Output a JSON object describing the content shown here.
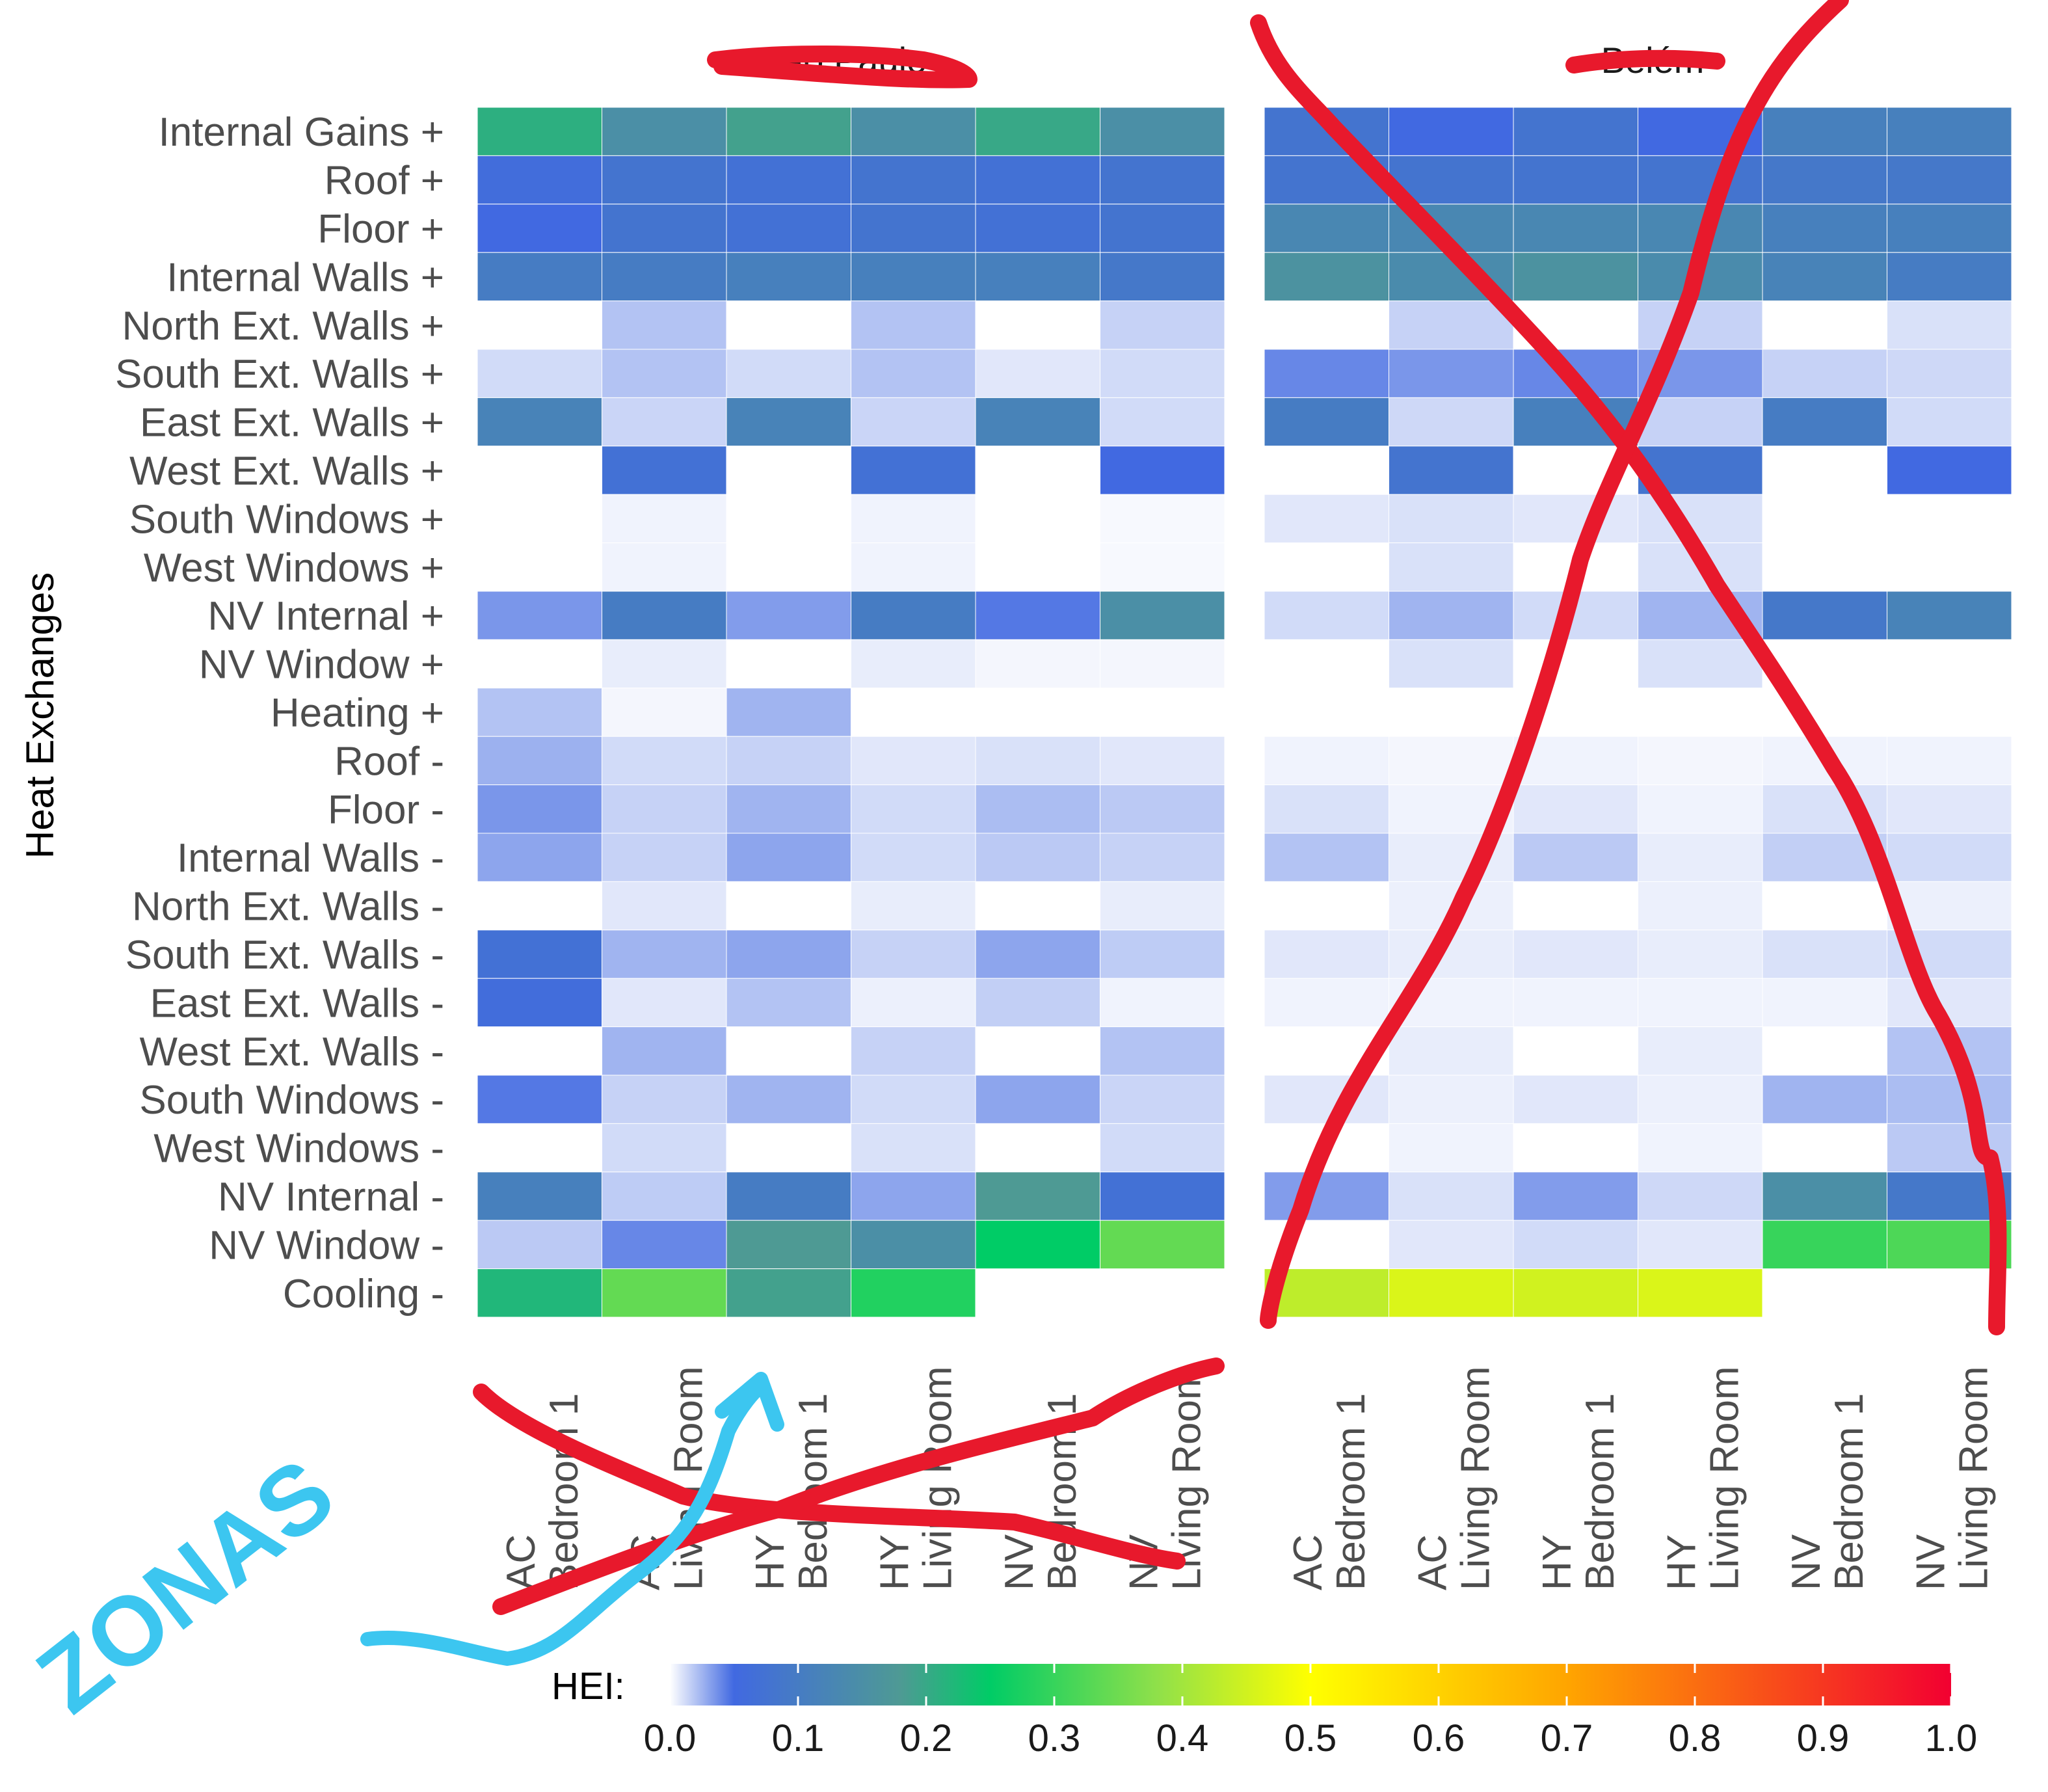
{
  "chart_data": {
    "type": "heatmap",
    "ylabel": "Heat Exchanges",
    "facets": [
      "São Paulo",
      "Belém"
    ],
    "rows": [
      "Internal Gains +",
      "Roof +",
      "Floor +",
      "Internal Walls +",
      "North Ext. Walls +",
      "South Ext. Walls +",
      "East Ext. Walls +",
      "West Ext. Walls +",
      "South Windows +",
      "West Windows +",
      "NV Internal +",
      "NV Window +",
      "Heating +",
      "Roof -",
      "Floor -",
      "Internal Walls -",
      "North Ext. Walls -",
      "South Ext. Walls -",
      "East Ext. Walls -",
      "West Ext. Walls -",
      "South Windows -",
      "West Windows -",
      "NV Internal -",
      "NV Window -",
      "Cooling -"
    ],
    "columns": [
      {
        "system": "AC",
        "zone": "Bedroom 1"
      },
      {
        "system": "AC",
        "zone": "Living Room"
      },
      {
        "system": "HY",
        "zone": "Bedroom 1"
      },
      {
        "system": "HY",
        "zone": "Living Room"
      },
      {
        "system": "NV",
        "zone": "Bedroom 1"
      },
      {
        "system": "NV",
        "zone": "Living Room"
      }
    ],
    "values": {
      "São Paulo": [
        [
          0.21,
          0.15,
          0.19,
          0.15,
          0.2,
          0.15
        ],
        [
          0.06,
          0.08,
          0.07,
          0.08,
          0.07,
          0.08
        ],
        [
          0.05,
          0.08,
          0.07,
          0.08,
          0.07,
          0.08
        ],
        [
          0.1,
          0.1,
          0.11,
          0.11,
          0.11,
          0.09
        ],
        [
          0.0,
          0.02,
          0.0,
          0.02,
          0.0,
          0.015
        ],
        [
          0.012,
          0.02,
          0.012,
          0.02,
          0.008,
          0.012
        ],
        [
          0.12,
          0.014,
          0.12,
          0.014,
          0.12,
          0.012
        ],
        [
          0.0,
          0.07,
          0.0,
          0.07,
          0.0,
          0.05
        ],
        [
          0.0,
          0.004,
          0.0,
          0.004,
          0.0,
          0.002
        ],
        [
          0.0,
          0.004,
          0.0,
          0.004,
          0.0,
          0.002
        ],
        [
          0.035,
          0.1,
          0.033,
          0.1,
          0.045,
          0.15
        ],
        [
          0.0,
          0.006,
          0.0,
          0.006,
          0.003,
          0.003
        ],
        [
          0.02,
          0.003,
          0.025,
          0.0,
          0.0,
          0.0
        ],
        [
          0.026,
          0.012,
          0.015,
          0.008,
          0.01,
          0.008
        ],
        [
          0.035,
          0.015,
          0.025,
          0.012,
          0.022,
          0.018
        ],
        [
          0.03,
          0.015,
          0.03,
          0.012,
          0.018,
          0.015
        ],
        [
          0.0,
          0.008,
          0.0,
          0.006,
          0.0,
          0.006
        ],
        [
          0.07,
          0.025,
          0.03,
          0.015,
          0.03,
          0.017
        ],
        [
          0.06,
          0.008,
          0.02,
          0.005,
          0.016,
          0.004
        ],
        [
          0.0,
          0.025,
          0.0,
          0.015,
          0.0,
          0.02
        ],
        [
          0.045,
          0.015,
          0.025,
          0.012,
          0.03,
          0.014
        ],
        [
          0.0,
          0.012,
          0.0,
          0.01,
          0.0,
          0.012
        ],
        [
          0.11,
          0.017,
          0.1,
          0.03,
          0.18,
          0.07
        ],
        [
          0.018,
          0.04,
          0.18,
          0.15,
          0.25,
          0.34
        ],
        [
          0.22,
          0.34,
          0.19,
          0.28,
          null,
          null
        ]
      ],
      "Belém": [
        [
          0.08,
          0.05,
          0.08,
          0.05,
          0.11,
          0.11
        ],
        [
          0.08,
          0.08,
          0.08,
          0.08,
          0.09,
          0.09
        ],
        [
          0.13,
          0.13,
          0.13,
          0.13,
          0.11,
          0.11
        ],
        [
          0.16,
          0.14,
          0.16,
          0.14,
          0.12,
          0.1
        ],
        [
          0.0,
          0.015,
          0.0,
          0.015,
          0.0,
          0.01
        ],
        [
          0.04,
          0.035,
          0.04,
          0.035,
          0.015,
          0.013
        ],
        [
          0.1,
          0.013,
          0.11,
          0.015,
          0.1,
          0.012
        ],
        [
          0.0,
          0.08,
          0.0,
          0.08,
          0.0,
          0.05
        ],
        [
          0.008,
          0.01,
          0.008,
          0.01,
          0.0,
          0.0
        ],
        [
          0.0,
          0.01,
          0.0,
          0.01,
          0.0,
          0.0
        ],
        [
          0.012,
          0.025,
          0.012,
          0.025,
          0.09,
          0.12
        ],
        [
          0.0,
          0.01,
          0.0,
          0.01,
          0.0,
          0.0
        ],
        [
          0.0,
          0.0,
          0.0,
          0.0,
          0.0,
          0.0
        ],
        [
          0.004,
          0.003,
          0.004,
          0.003,
          0.004,
          0.004
        ],
        [
          0.01,
          0.004,
          0.008,
          0.004,
          0.01,
          0.008
        ],
        [
          0.02,
          0.006,
          0.018,
          0.006,
          0.016,
          0.012
        ],
        [
          0.0,
          0.005,
          0.0,
          0.005,
          0.0,
          0.005
        ],
        [
          0.008,
          0.006,
          0.008,
          0.006,
          0.01,
          0.012
        ],
        [
          0.004,
          0.004,
          0.004,
          0.004,
          0.004,
          0.008
        ],
        [
          0.0,
          0.006,
          0.0,
          0.006,
          0.0,
          0.02
        ],
        [
          0.008,
          0.005,
          0.008,
          0.005,
          0.025,
          0.022
        ],
        [
          0.0,
          0.004,
          0.0,
          0.004,
          0.0,
          0.018
        ],
        [
          0.033,
          0.01,
          0.033,
          0.013,
          0.15,
          0.09
        ],
        [
          0.0,
          0.008,
          0.012,
          0.008,
          0.3,
          0.32
        ],
        [
          0.43,
          0.46,
          0.45,
          0.46,
          null,
          null
        ]
      ]
    },
    "colorbar": {
      "title": "HEI:",
      "ticks": [
        0.0,
        0.1,
        0.2,
        0.3,
        0.4,
        0.5,
        0.6,
        0.7,
        0.8,
        0.9,
        1.0
      ],
      "tick_labels": [
        "0.0",
        "0.1",
        "0.2",
        "0.3",
        "0.4",
        "0.5",
        "0.6",
        "0.7",
        "0.8",
        "0.9",
        "1.0"
      ],
      "range": [
        0,
        1
      ],
      "stops": [
        {
          "v": 0.0,
          "c": "#ffffff"
        },
        {
          "v": 0.05,
          "c": "#4169e1"
        },
        {
          "v": 0.18,
          "c": "#4e9a94"
        },
        {
          "v": 0.25,
          "c": "#00cc66"
        },
        {
          "v": 0.38,
          "c": "#8fe04a"
        },
        {
          "v": 0.5,
          "c": "#ffff00"
        },
        {
          "v": 0.7,
          "c": "#ffa500"
        },
        {
          "v": 1.0,
          "c": "#f20031"
        }
      ],
      "position": "bottom"
    }
  },
  "annotations": {
    "handwritten_label": "ZONAS",
    "red_strike_color": "#e8192c",
    "blue_ink_color": "#3cc6f0"
  }
}
